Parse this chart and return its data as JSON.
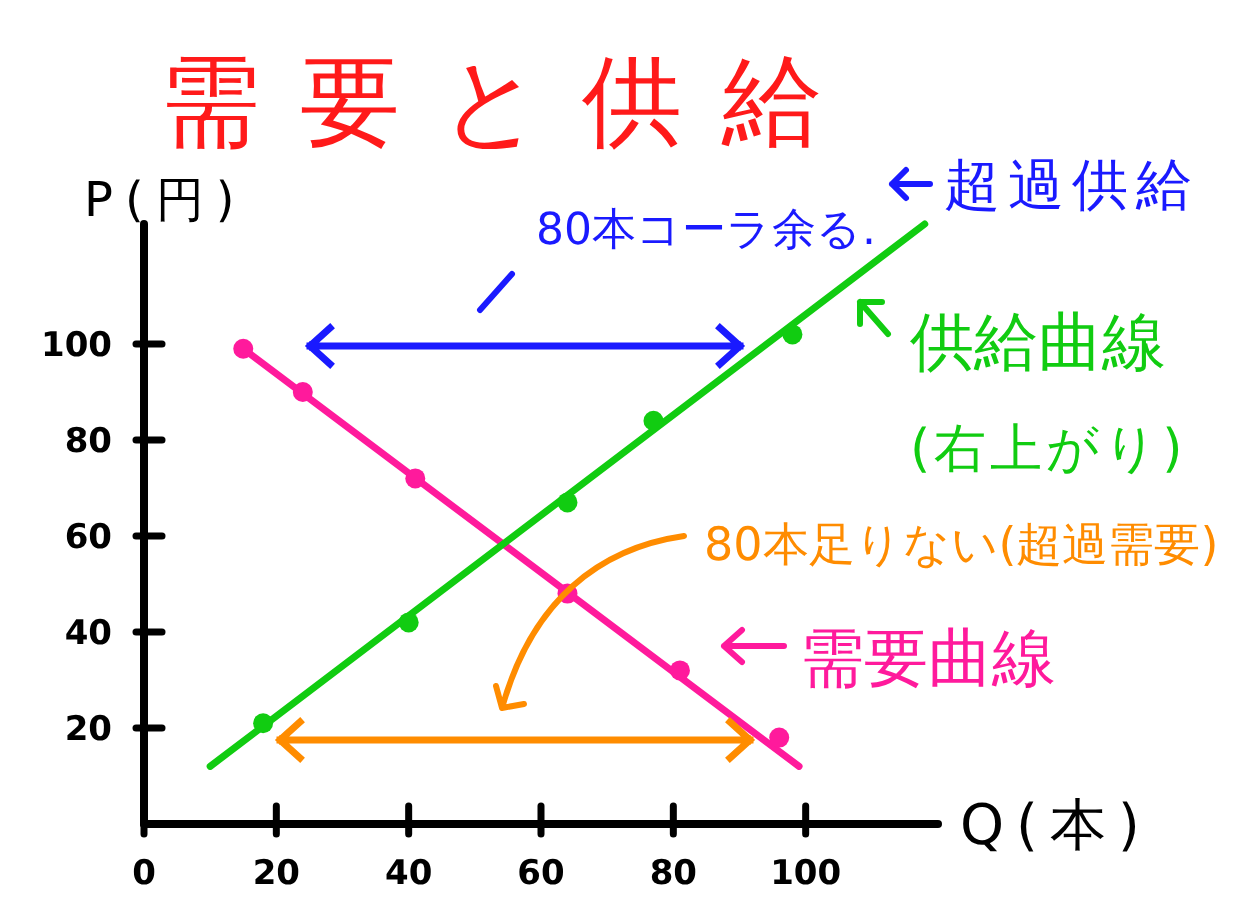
{
  "chart_data": {
    "type": "line",
    "title": "需要と供給",
    "xlabel": "Q(本)",
    "ylabel": "P(円)",
    "xlim": [
      0,
      120
    ],
    "ylim": [
      0,
      125
    ],
    "xticks": [
      0,
      20,
      40,
      60,
      80,
      100
    ],
    "yticks": [
      20,
      40,
      60,
      80,
      100
    ],
    "legend": "right",
    "series": [
      {
        "name": "需要曲線",
        "type": "line",
        "color": "#ff1a9c",
        "x": [
          15,
          99
        ],
        "values": [
          99,
          12
        ]
      },
      {
        "type": "scatter",
        "marker": "circle",
        "color": "#ff1a9c",
        "x": [
          15,
          24,
          41,
          64,
          81,
          96
        ],
        "values": [
          99,
          90,
          72,
          48,
          32,
          18
        ]
      },
      {
        "name": "供給曲線",
        "type": "line",
        "color": "#11cc11",
        "x": [
          10,
          118
        ],
        "values": [
          12,
          125
        ]
      },
      {
        "type": "scatter",
        "marker": "circle",
        "color": "#11cc11",
        "x": [
          18,
          40,
          64,
          77,
          98
        ],
        "values": [
          21,
          42,
          67,
          84,
          102
        ]
      }
    ],
    "annotations": [
      "80本コーラ余る.",
      "超過供給",
      "(右上がり)",
      "80本足りない(超過需要)"
    ]
  }
}
